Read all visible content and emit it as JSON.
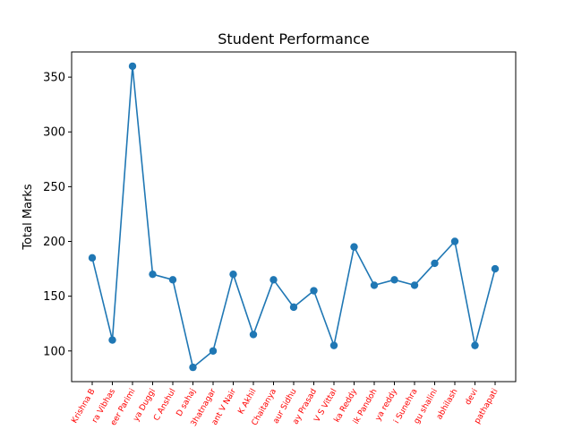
{
  "chart_data": {
    "type": "line",
    "title": "Student Performance",
    "xlabel": "",
    "ylabel": "Total Marks",
    "ylim": [
      72,
      373
    ],
    "yticks": [
      100,
      150,
      200,
      250,
      300,
      350
    ],
    "grid": false,
    "legend": "none",
    "marker": "circle",
    "colors": {
      "line": "#1f77b4",
      "xtick_labels": "#ff0000",
      "axes": "#000000"
    },
    "categories": [
      "Krishna B",
      "ra Vibhas",
      "eer Parimi",
      "ya Duggi",
      "C Anshul",
      "D sahaj",
      "3hatnagar",
      "ant V Nair",
      "K Akhil",
      "Chaitanya",
      "aur Sidhu",
      "ay Prasad",
      "V S Vittal",
      "ka Reddy",
      "ik Pandoh",
      "ya reddy",
      "i Sunehra",
      "gu shalini",
      "abhilash",
      "devi",
      "pathapati"
    ],
    "series": [
      {
        "values": [
          185,
          110,
          360,
          170,
          165,
          85,
          100,
          170,
          115,
          165,
          140,
          155,
          105,
          195,
          160,
          165,
          160,
          180,
          200,
          105,
          175
        ]
      }
    ]
  }
}
